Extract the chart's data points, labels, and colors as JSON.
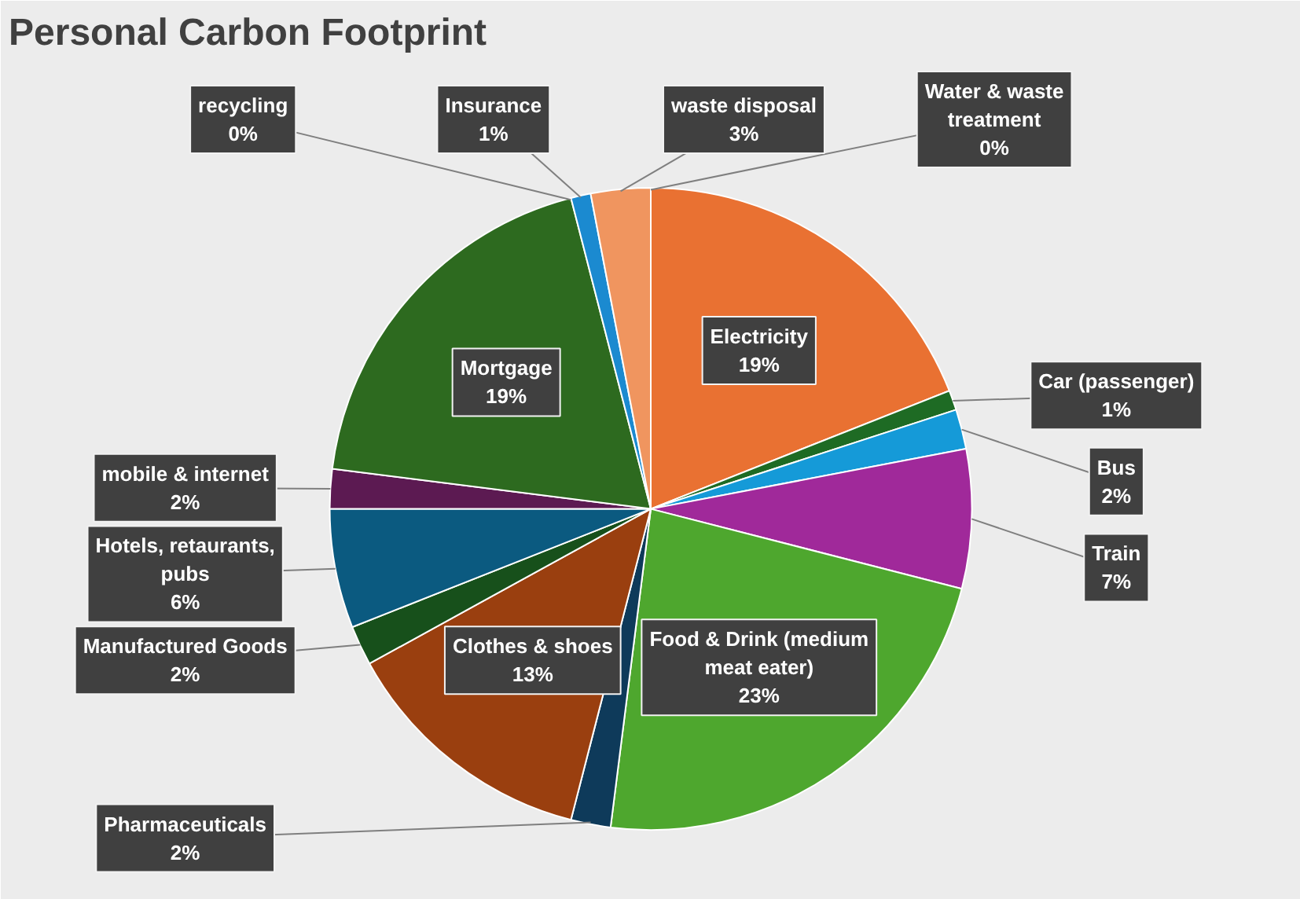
{
  "chart_data": {
    "type": "pie",
    "title": "Personal Carbon Footprint",
    "categories": [
      "Electricity",
      "Car (passenger)",
      "Bus",
      "Train",
      "Food & Drink (medium meat eater)",
      "Pharmaceuticals",
      "Clothes & shoes",
      "Manufactured Goods",
      "Hotels, retaurants, pubs",
      "mobile & internet",
      "Mortgage",
      "recycling",
      "Insurance",
      "waste disposal",
      "Water & waste treatment"
    ],
    "values": [
      19,
      1,
      2,
      7,
      23,
      2,
      13,
      2,
      6,
      2,
      19,
      0,
      1,
      3,
      0
    ],
    "value_labels": [
      "19%",
      "1%",
      "2%",
      "7%",
      "23%",
      "2%",
      "13%",
      "2%",
      "6%",
      "2%",
      "19%",
      "0%",
      "1%",
      "3%",
      "0%"
    ],
    "colors": [
      "#e97132",
      "#1e6b24",
      "#159ad8",
      "#a0299a",
      "#4ea72e",
      "#0e3a5a",
      "#9a3f0f",
      "#17501b",
      "#0b5a80",
      "#5c1a52",
      "#2d6a1f",
      "#3b7d23",
      "#1b8ad0",
      "#f0955f",
      "#0f5a7a"
    ]
  }
}
